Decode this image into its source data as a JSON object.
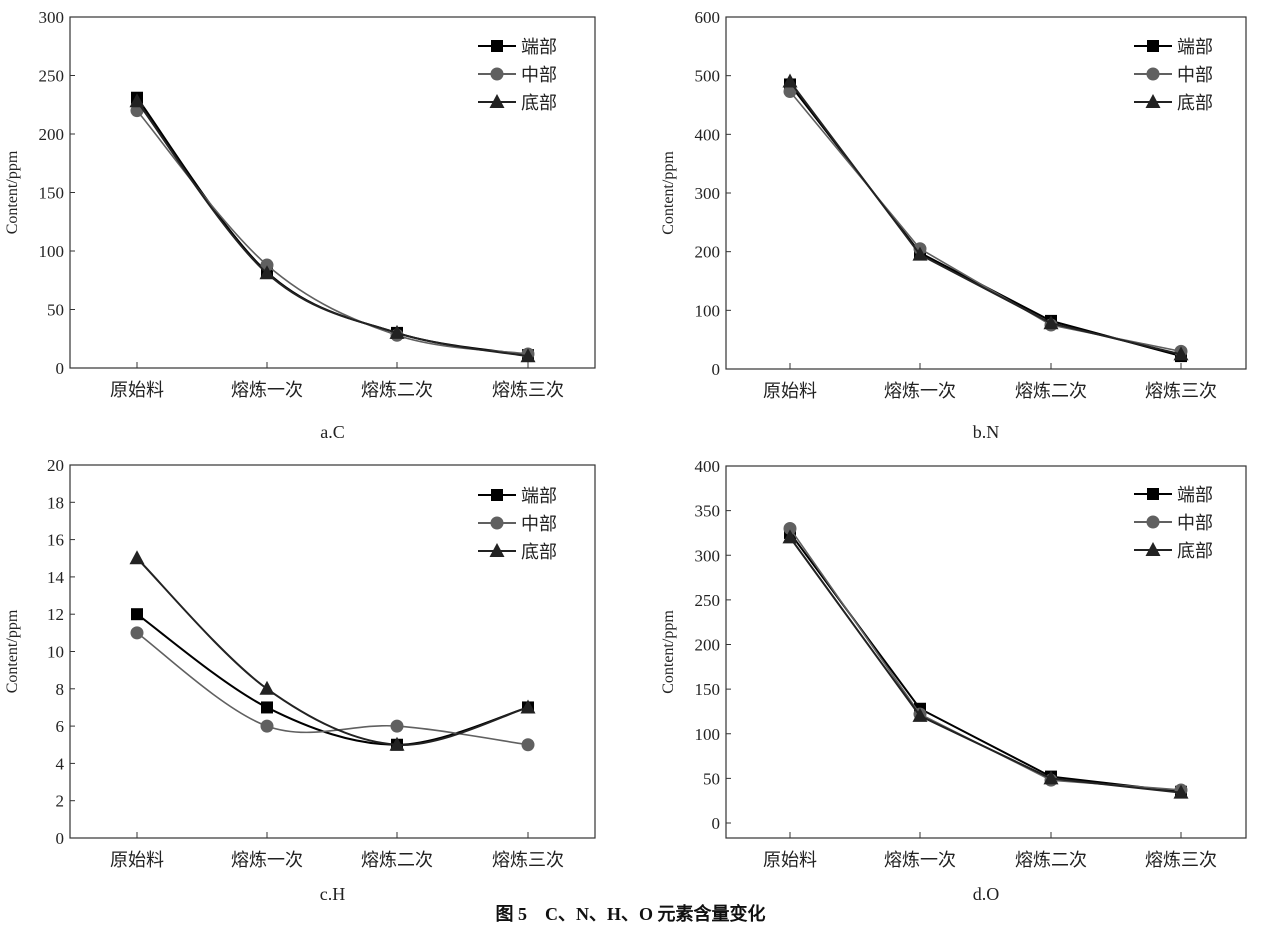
{
  "figure_caption": "图 5　C、N、H、O 元素含量变化",
  "series_styles": [
    {
      "color": "#000000",
      "marker": "square"
    },
    {
      "color": "#606060",
      "marker": "circle"
    },
    {
      "color": "#222222",
      "marker": "triangle"
    }
  ],
  "chart_data": [
    {
      "type": "line",
      "subtitle": "a.C",
      "ylabel": "Content/ppm",
      "xlabel": "",
      "categories": [
        "原始料",
        "熔炼一次",
        "熔炼二次",
        "熔炼三次"
      ],
      "ylim": [
        0,
        300
      ],
      "yticks": [
        0,
        50,
        100,
        150,
        200,
        250,
        300
      ],
      "smooth": true,
      "legend": "top-right",
      "grid": false,
      "series": [
        {
          "name": "端部",
          "values": [
            231,
            82,
            30,
            11
          ]
        },
        {
          "name": "中部",
          "values": [
            220,
            88,
            28,
            12
          ]
        },
        {
          "name": "底部",
          "values": [
            228,
            81,
            30,
            10
          ]
        }
      ]
    },
    {
      "type": "line",
      "subtitle": "b.N",
      "ylabel": "Content/ppm",
      "xlabel": "",
      "categories": [
        "原始料",
        "熔炼一次",
        "熔炼二次",
        "熔炼三次"
      ],
      "ylim": [
        0,
        600
      ],
      "yticks": [
        0,
        100,
        200,
        300,
        400,
        500,
        600
      ],
      "smooth": false,
      "legend": "top-right",
      "grid": false,
      "series": [
        {
          "name": "端部",
          "values": [
            485,
            198,
            82,
            22
          ]
        },
        {
          "name": "中部",
          "values": [
            473,
            205,
            75,
            30
          ]
        },
        {
          "name": "底部",
          "values": [
            490,
            195,
            78,
            25
          ]
        }
      ]
    },
    {
      "type": "line",
      "subtitle": "c.H",
      "ylabel": "Content/ppm",
      "xlabel": "",
      "categories": [
        "原始料",
        "熔炼一次",
        "熔炼二次",
        "熔炼三次"
      ],
      "ylim": [
        0,
        20
      ],
      "yticks": [
        0,
        2,
        4,
        6,
        8,
        10,
        12,
        14,
        16,
        18,
        20
      ],
      "smooth": true,
      "legend": "top-right",
      "grid": false,
      "series": [
        {
          "name": "端部",
          "values": [
            12,
            7,
            5,
            7
          ]
        },
        {
          "name": "中部",
          "values": [
            11,
            6,
            6,
            5
          ]
        },
        {
          "name": "底部",
          "values": [
            15,
            8,
            5,
            7
          ]
        }
      ]
    },
    {
      "type": "line",
      "subtitle": "d.O",
      "ylabel": "Content/ppm",
      "xlabel": "",
      "categories": [
        "原始料",
        "熔炼一次",
        "熔炼二次",
        "熔炼三次"
      ],
      "ylim": [
        0,
        400
      ],
      "yticks": [
        0,
        50,
        100,
        150,
        200,
        250,
        300,
        350,
        400
      ],
      "smooth": false,
      "legend": "top-right",
      "grid": false,
      "series": [
        {
          "name": "端部",
          "values": [
            325,
            128,
            52,
            35
          ]
        },
        {
          "name": "中部",
          "values": [
            330,
            122,
            48,
            37
          ]
        },
        {
          "name": "底部",
          "values": [
            320,
            120,
            50,
            34
          ]
        }
      ]
    }
  ]
}
